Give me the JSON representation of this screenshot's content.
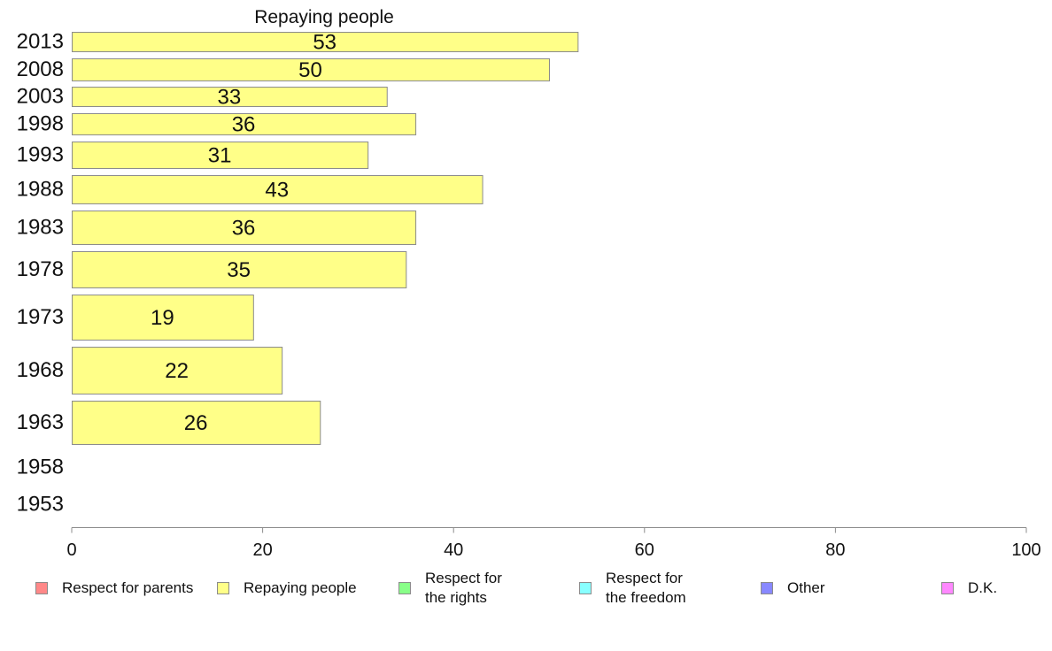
{
  "chart_data": {
    "type": "bar",
    "orientation": "horizontal",
    "title": "Repaying people",
    "categories": [
      "2013",
      "2008",
      "2003",
      "1998",
      "1993",
      "1988",
      "1983",
      "1978",
      "1973",
      "1968",
      "1963",
      "1958",
      "1953"
    ],
    "series": [
      {
        "name": "Repaying people",
        "color": "#ffff88",
        "values": [
          53,
          50,
          33,
          36,
          31,
          43,
          36,
          35,
          19,
          22,
          26,
          null,
          null
        ]
      }
    ],
    "xlim": [
      0,
      100
    ],
    "xticks": [
      "0",
      "20",
      "40",
      "60",
      "80",
      "100"
    ],
    "xlabel": "",
    "ylabel": "",
    "grid": false,
    "legend_position": "bottom"
  },
  "legend": [
    {
      "label": "Respect for parents",
      "color": "#ff8888"
    },
    {
      "label": "Repaying people",
      "color": "#ffff88"
    },
    {
      "label": "Respect for\nthe rights",
      "color": "#88ff88"
    },
    {
      "label": "Respect for\nthe freedom",
      "color": "#88ffff"
    },
    {
      "label": "Other",
      "color": "#8888ff"
    },
    {
      "label": "D.K.",
      "color": "#ff88ff"
    }
  ]
}
